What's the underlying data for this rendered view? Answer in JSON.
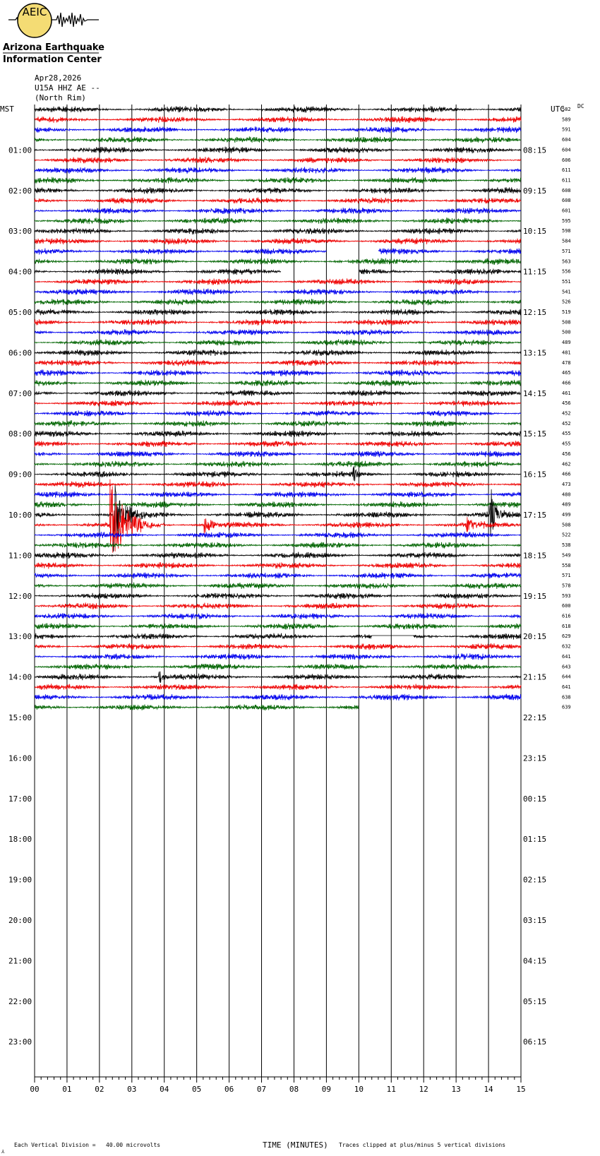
{
  "logo": {
    "acronym": "AEIC",
    "line1": "Arizona Earthquake",
    "line2": "Information Center"
  },
  "header": {
    "date": "Apr28,2026",
    "station": "U15A HHZ AE --",
    "location": "(North Rim)"
  },
  "left_axis_label": "MST",
  "right_axis_label": "UTC",
  "dc_label": "DC",
  "footer": {
    "scale_note": "Each Vertical Division =   40.00 microvolts",
    "clip_note": "Traces clipped at plus/minus 5 vertical divisions",
    "corner_mark": "⅄"
  },
  "colors": {
    "trace_cycle": [
      "#000000",
      "#ee0000",
      "#0000ee",
      "#006400"
    ],
    "grid": "#000000"
  },
  "chart_data": {
    "type": "line",
    "title": "",
    "xlabel": "TIME (MINUTES)",
    "ylabel": "",
    "xlim": [
      0,
      15
    ],
    "x_ticks": [
      "00",
      "01",
      "02",
      "03",
      "04",
      "05",
      "06",
      "07",
      "08",
      "09",
      "10",
      "11",
      "12",
      "13",
      "14",
      "15"
    ],
    "rows_per_hour": 4,
    "minutes_per_row": 15,
    "mst_hour_labels": [
      "01:00",
      "02:00",
      "03:00",
      "04:00",
      "05:00",
      "06:00",
      "07:00",
      "08:00",
      "09:00",
      "10:00",
      "11:00",
      "12:00",
      "13:00",
      "14:00",
      "15:00",
      "16:00",
      "17:00",
      "18:00",
      "19:00",
      "20:00",
      "21:00",
      "22:00",
      "23:00"
    ],
    "utc_hour_labels": [
      "08:15",
      "09:15",
      "10:15",
      "11:15",
      "12:15",
      "13:15",
      "14:15",
      "15:15",
      "16:15",
      "17:15",
      "18:15",
      "19:15",
      "20:15",
      "21:15",
      "22:15",
      "23:15",
      "00:15",
      "01:15",
      "02:15",
      "03:15",
      "04:15",
      "05:15",
      "06:15"
    ],
    "dc_offsets": [
      582,
      589,
      591,
      604,
      604,
      606,
      611,
      611,
      608,
      608,
      601,
      595,
      598,
      584,
      571,
      563,
      556,
      551,
      541,
      526,
      519,
      508,
      500,
      489,
      481,
      478,
      465,
      466,
      461,
      456,
      452,
      452,
      455,
      455,
      456,
      462,
      466,
      473,
      480,
      489,
      499,
      508,
      522,
      538,
      549,
      558,
      571,
      578,
      593,
      600,
      616,
      618,
      629,
      632,
      641,
      643,
      644,
      641,
      638,
      639
    ],
    "last_row_end_minute": 10,
    "gaps": [
      {
        "row": 14,
        "start_minute": 9.0,
        "end_minute": 10.6
      },
      {
        "row": 16,
        "start_minute": 7.6,
        "end_minute": 10.0
      }
    ],
    "flat_segments": [
      {
        "row": 52,
        "start_minute": 10.4,
        "end_minute": 11.7
      }
    ],
    "events": [
      {
        "row": 40,
        "minute": 2.5,
        "amplitude": 5.0,
        "duration": 0.9
      },
      {
        "row": 41,
        "minute": 2.4,
        "amplitude": 5.0,
        "duration": 1.6
      },
      {
        "row": 41,
        "minute": 5.3,
        "amplitude": 1.2,
        "duration": 0.8
      },
      {
        "row": 41,
        "minute": 13.4,
        "amplitude": 1.0,
        "duration": 0.7
      },
      {
        "row": 40,
        "minute": 14.1,
        "amplitude": 4.0,
        "duration": 0.5
      },
      {
        "row": 36,
        "minute": 9.9,
        "amplitude": 1.0,
        "duration": 0.4
      },
      {
        "row": 56,
        "minute": 3.9,
        "amplitude": 0.9,
        "duration": 0.3
      }
    ]
  }
}
